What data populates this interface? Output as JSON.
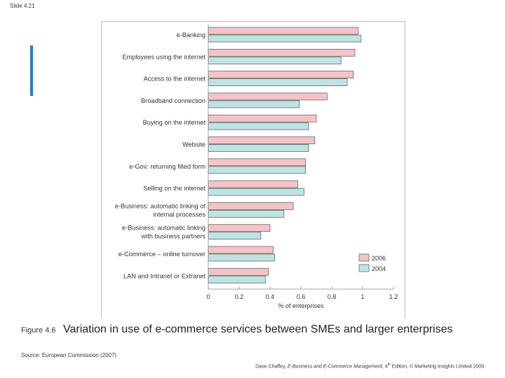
{
  "slide": {
    "number_label": "Slide 4.21"
  },
  "caption": {
    "figure_label": "Figure 4.6",
    "title": "Variation in use of e-commerce services between SMEs and larger enterprises"
  },
  "source": {
    "label": "Source:",
    "text": "European Commission (2007)"
  },
  "credit": {
    "author": "Dave Chaffey,",
    "book": "E-Business and E-Commerce Management",
    "edition_num": "4",
    "edition_sup": "th",
    "rest": "Edition, © Marketing Insights Limited 2009"
  },
  "colors": {
    "series_2006": "#f2c4c8",
    "series_2004": "#bfe3e3",
    "bar_stroke": "#666666",
    "accent": "#2a7bb7"
  },
  "chart_data": {
    "type": "bar",
    "orientation": "horizontal",
    "categories": [
      "e-Banking",
      "Employees using the internet",
      "Access to the internet",
      "Broadband connection",
      "Buying on the internet",
      "Website",
      "e-Gov: returning filled form",
      "Selling on the internet",
      "e-Business: automatic linking of internal processes",
      "e-Business: automatic linking with business partners",
      "e-Commerce – online turnover",
      "LAN and Intranet or Extranet"
    ],
    "category_lines": [
      [
        "e-Banking"
      ],
      [
        "Employees using the internet"
      ],
      [
        "Access to the internet"
      ],
      [
        "Broadband connection"
      ],
      [
        "Buying on the internet"
      ],
      [
        "Website"
      ],
      [
        "e-Gov: returning filled form"
      ],
      [
        "Selling on the internet"
      ],
      [
        "e-Business: automatic linking of",
        "internal processes"
      ],
      [
        "e-Business: automatic linking",
        "with business partners"
      ],
      [
        "e-Commerce – online turnover"
      ],
      [
        "LAN and Intranet or Extranet"
      ]
    ],
    "series": [
      {
        "name": "2006",
        "values": [
          0.97,
          0.95,
          0.94,
          0.77,
          0.7,
          0.69,
          0.63,
          0.58,
          0.55,
          0.4,
          0.42,
          0.39
        ]
      },
      {
        "name": "2004",
        "values": [
          0.99,
          0.86,
          0.9,
          0.59,
          0.65,
          0.65,
          0.63,
          0.62,
          0.49,
          0.34,
          0.43,
          0.37
        ]
      }
    ],
    "xlabel": "% of enterprises",
    "xlim": [
      0,
      1.2
    ],
    "xticks": [
      0,
      0.2,
      0.4,
      0.6,
      0.8,
      1,
      1.2
    ],
    "xtick_labels": [
      "0",
      "0.2",
      "0.4",
      "0.6",
      "0.8",
      "1",
      "1.2"
    ],
    "grid": false,
    "legend_position": "bottom-right"
  }
}
